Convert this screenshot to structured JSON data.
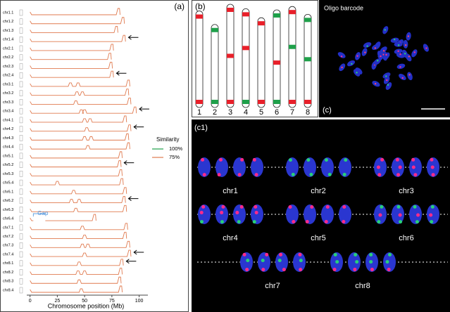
{
  "chart_data": {
    "type": "line",
    "panel_label": "(a)",
    "x_label": "Chromosome position (Mb)",
    "xlim": [
      -3,
      108
    ],
    "xticks": [
      0,
      25,
      50,
      75,
      100
    ],
    "legend_title": "Similarity",
    "series": [
      {
        "name": "100%",
        "color": "#1fa04a"
      },
      {
        "name": "75%",
        "color": "#e07a4f"
      }
    ],
    "rows": [
      {
        "label": "chr1.1",
        "end": 82,
        "peaks": [],
        "arrow": false
      },
      {
        "label": "chr1.2",
        "end": 86,
        "peaks": [],
        "arrow": false
      },
      {
        "label": "chr1.3",
        "end": 80,
        "peaks": [],
        "arrow": false
      },
      {
        "label": "chr1.4",
        "end": 87,
        "peaks": [],
        "arrow": true
      },
      {
        "label": "chr2.1",
        "end": 76,
        "peaks": [],
        "arrow": false
      },
      {
        "label": "chr2.2",
        "end": 74,
        "peaks": [],
        "arrow": false
      },
      {
        "label": "chr2.3",
        "end": 75,
        "peaks": [],
        "arrow": false
      },
      {
        "label": "chr2.4",
        "end": 76,
        "peaks": [],
        "arrow": true
      },
      {
        "label": "chr3.1",
        "end": 91,
        "peaks": [
          37,
          44
        ],
        "arrow": false
      },
      {
        "label": "chr3.2",
        "end": 90,
        "peaks": [
          43,
          48
        ],
        "arrow": false
      },
      {
        "label": "chr3.3",
        "end": 92,
        "peaks": [
          42
        ],
        "arrow": false
      },
      {
        "label": "chr3.4",
        "end": 97,
        "peaks": [
          47,
          50
        ],
        "arrow": true
      },
      {
        "label": "chr4.1",
        "end": 88,
        "peaks": [
          50,
          55
        ],
        "arrow": false
      },
      {
        "label": "chr4.2",
        "end": 92,
        "peaks": [
          52
        ],
        "arrow": true
      },
      {
        "label": "chr4.3",
        "end": 90,
        "peaks": [
          50,
          56
        ],
        "arrow": false
      },
      {
        "label": "chr4.4",
        "end": 91,
        "peaks": [
          53
        ],
        "arrow": false
      },
      {
        "label": "chr5.1",
        "end": 84,
        "peaks": [],
        "arrow": false
      },
      {
        "label": "chr5.2",
        "end": 83,
        "peaks": [],
        "arrow": true
      },
      {
        "label": "chr5.3",
        "end": 84,
        "peaks": [],
        "arrow": false
      },
      {
        "label": "chr5.4",
        "end": 85,
        "peaks": [
          25
        ],
        "arrow": false
      },
      {
        "label": "chr6.1",
        "end": 88,
        "peaks": [
          40
        ],
        "arrow": false
      },
      {
        "label": "chr6.2",
        "end": 87,
        "peaks": [
          38,
          45
        ],
        "arrow": true
      },
      {
        "label": "chr6.3",
        "end": 88,
        "peaks": [
          42
        ],
        "arrow": false
      },
      {
        "label": "chr6.4",
        "end": 60,
        "peaks": [],
        "arrow": false,
        "gap": {
          "label": "Gap",
          "start": 3,
          "end": 14
        }
      },
      {
        "label": "chr7.1",
        "end": 89,
        "peaks": [
          48
        ],
        "arrow": false
      },
      {
        "label": "chr7.2",
        "end": 88,
        "peaks": [
          50
        ],
        "arrow": false
      },
      {
        "label": "chr7.3",
        "end": 91,
        "peaks": [
          48,
          53
        ],
        "arrow": false
      },
      {
        "label": "chr7.4",
        "end": 92,
        "peaks": [
          50
        ],
        "arrow": true
      },
      {
        "label": "chr8.1",
        "end": 85,
        "peaks": [
          45
        ],
        "arrow": true
      },
      {
        "label": "chr8.2",
        "end": 84,
        "peaks": [
          44,
          50
        ],
        "arrow": false
      },
      {
        "label": "chr8.3",
        "end": 83,
        "peaks": [
          45
        ],
        "arrow": false
      },
      {
        "label": "chr8.4",
        "end": 84,
        "peaks": [
          47
        ],
        "arrow": false
      }
    ]
  },
  "ideogram": {
    "panel_label": "(b)",
    "chromosomes": [
      {
        "label": "1",
        "length": 86,
        "bands": [
          {
            "pos": 5,
            "color": "#e8202a"
          },
          {
            "pos": 81,
            "color": "#e8202a"
          }
        ]
      },
      {
        "label": "2",
        "length": 74,
        "bands": [
          {
            "pos": 5,
            "color": "#1fa04a"
          },
          {
            "pos": 69,
            "color": "#1fa04a"
          }
        ]
      },
      {
        "label": "3",
        "length": 92,
        "bands": [
          {
            "pos": 5,
            "color": "#e8202a"
          },
          {
            "pos": 46,
            "color": "#e8202a"
          },
          {
            "pos": 87,
            "color": "#e8202a"
          }
        ]
      },
      {
        "label": "4",
        "length": 88,
        "bands": [
          {
            "pos": 5,
            "color": "#e8202a"
          },
          {
            "pos": 35,
            "color": "#e8202a"
          },
          {
            "pos": 83,
            "color": "#1fa04a"
          }
        ]
      },
      {
        "label": "5",
        "length": 80,
        "bands": [
          {
            "pos": 5,
            "color": "#e8202a"
          },
          {
            "pos": 75,
            "color": "#e8202a"
          }
        ]
      },
      {
        "label": "6",
        "length": 87,
        "bands": [
          {
            "pos": 5,
            "color": "#1fa04a"
          },
          {
            "pos": 47,
            "color": "#e8202a"
          },
          {
            "pos": 82,
            "color": "#1fa04a"
          }
        ]
      },
      {
        "label": "7",
        "length": 90,
        "bands": [
          {
            "pos": 5,
            "color": "#e8202a"
          },
          {
            "pos": 36,
            "color": "#1fa04a"
          },
          {
            "pos": 85,
            "color": "#e8202a"
          }
        ]
      },
      {
        "label": "8",
        "length": 83,
        "bands": [
          {
            "pos": 5,
            "color": "#1fa04a"
          },
          {
            "pos": 40,
            "color": "#1fa04a"
          },
          {
            "pos": 78,
            "color": "#e8202a"
          }
        ]
      }
    ]
  },
  "image_c": {
    "title": "Oligo barcode",
    "panel_label": "(c)"
  },
  "image_c1": {
    "panel_label": "(c1)",
    "labels": [
      "chr1",
      "chr2",
      "chr3",
      "chr4",
      "chr5",
      "chr6",
      "chr7",
      "chr8"
    ]
  }
}
